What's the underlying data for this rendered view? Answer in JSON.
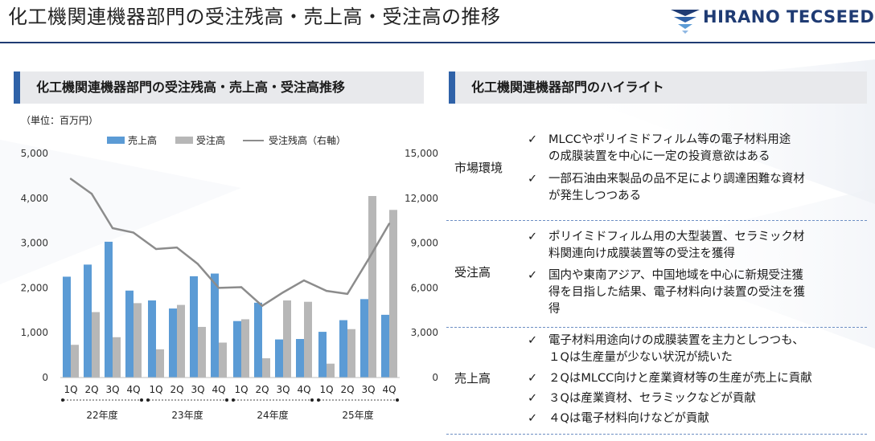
{
  "page": {
    "title": "化工機関連機器部門の受注残高・売上高・受注高の推移",
    "logo_text": "HIRANO TECSEED"
  },
  "left_panel": {
    "header": "化工機関連機器部門の受注残高・売上高・受注高推移",
    "unit": "（単位：百万円）"
  },
  "right_panel": {
    "header": "化工機関連機器部門のハイライト",
    "check_mark": "✓",
    "sections": [
      {
        "label": "市場環境",
        "items": [
          [
            "MLCCやポリイミドフィルム等の電子材料用途",
            "の成膜装置を中心に一定の投資意欲はある"
          ],
          [
            "一部石油由来製品の品不足により調達困難な資材",
            "が発生しつつある"
          ]
        ]
      },
      {
        "label": "受注高",
        "items": [
          [
            "ポリイミドフィルム用の大型装置、セラミック材",
            "料関連向け成膜装置等の受注を獲得"
          ],
          [
            "国内や東南アジア、中国地域を中心に新規受注獲",
            "得を目指した結果、電子材料向け装置の受注を獲",
            "得"
          ]
        ]
      },
      {
        "label": "売上高",
        "items": [
          [
            "電子材料用途向けの成膜装置を主力としつつも、",
            "１Qは生産量が少ない状況が続いた"
          ],
          [
            "２QはMLCC向けと産業資材等の生産が売上に貢献"
          ],
          [
            "３Qは産業資材、セラミックなどが貢献"
          ],
          [
            "４Qは電子材料向けなどが貢献"
          ]
        ]
      }
    ]
  },
  "colors": {
    "sales": "#5b9bd5",
    "orders": "#b7b7b7",
    "backlog": "#8c8c8c",
    "accent": "#2f62a8",
    "title_rule": "#1f3b73"
  },
  "chart_data": {
    "type": "bar",
    "categories": [
      "1Q",
      "2Q",
      "3Q",
      "4Q",
      "1Q",
      "2Q",
      "3Q",
      "4Q",
      "1Q",
      "2Q",
      "3Q",
      "4Q",
      "1Q",
      "2Q",
      "3Q",
      "4Q"
    ],
    "groups": [
      "22年度",
      "23年度",
      "24年度",
      "25年度"
    ],
    "series": [
      {
        "name": "売上高",
        "type": "bar",
        "axis": "left",
        "values": [
          2250,
          2520,
          3030,
          1940,
          1720,
          1540,
          2260,
          2320,
          1260,
          1670,
          850,
          860,
          1020,
          1280,
          1750,
          1400
        ]
      },
      {
        "name": "受注高",
        "type": "bar",
        "axis": "left",
        "values": [
          730,
          1460,
          900,
          1660,
          630,
          1620,
          1130,
          780,
          1300,
          430,
          1720,
          1690,
          310,
          1080,
          4050,
          3740
        ]
      },
      {
        "name": "受注残高（右軸）",
        "type": "line",
        "axis": "right",
        "values": [
          13300,
          12300,
          10000,
          9700,
          8600,
          8700,
          7600,
          6000,
          6050,
          4800,
          5700,
          6500,
          5800,
          5600,
          7900,
          10300
        ]
      }
    ],
    "y_left": {
      "min": 0,
      "max": 5000,
      "ticks": [
        "0",
        "1,000",
        "2,000",
        "3,000",
        "4,000",
        "5,000"
      ]
    },
    "y_right": {
      "min": 0,
      "max": 15000,
      "ticks": [
        "0",
        "3,000",
        "6,000",
        "9,000",
        "12,000",
        "15,000"
      ]
    },
    "grid": false,
    "legend": "top"
  }
}
